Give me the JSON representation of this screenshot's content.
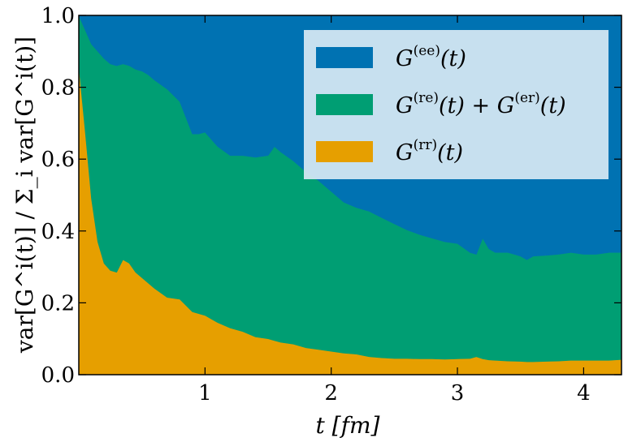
{
  "chart_data": {
    "type": "area",
    "stacked": true,
    "xlabel": "t [fm]",
    "ylabel": "var[G^i(t)] / Σ_i var[G^i(t)]",
    "xlim": [
      0.0,
      4.3
    ],
    "ylim": [
      0.0,
      1.0
    ],
    "x_ticks": [
      1,
      2,
      3,
      4
    ],
    "y_ticks": [
      0.0,
      0.2,
      0.4,
      0.6,
      0.8,
      1.0
    ],
    "x_tick_labels": [
      "1",
      "2",
      "3",
      "4"
    ],
    "y_tick_labels": [
      "0.0",
      "0.2",
      "0.4",
      "0.6",
      "0.8",
      "1.0"
    ],
    "grid": false,
    "legend_position": "top-right",
    "x": [
      0.0,
      0.05,
      0.1,
      0.15,
      0.2,
      0.25,
      0.3,
      0.35,
      0.4,
      0.45,
      0.5,
      0.55,
      0.6,
      0.7,
      0.8,
      0.9,
      0.95,
      1.0,
      1.05,
      1.1,
      1.2,
      1.3,
      1.4,
      1.5,
      1.55,
      1.6,
      1.7,
      1.8,
      1.9,
      2.0,
      2.1,
      2.2,
      2.3,
      2.4,
      2.5,
      2.6,
      2.7,
      2.8,
      2.9,
      3.0,
      3.1,
      3.15,
      3.2,
      3.25,
      3.3,
      3.4,
      3.5,
      3.55,
      3.6,
      3.7,
      3.8,
      3.9,
      4.0,
      4.1,
      4.2,
      4.3
    ],
    "series": [
      {
        "name": "G^(rr)(t)",
        "legend": {
          "base": "G",
          "sup": "(rr)",
          "tail": "(t)"
        },
        "color": "#E69F00",
        "values": [
          0.86,
          0.68,
          0.49,
          0.37,
          0.31,
          0.29,
          0.285,
          0.32,
          0.31,
          0.285,
          0.27,
          0.255,
          0.24,
          0.215,
          0.21,
          0.175,
          0.17,
          0.165,
          0.155,
          0.145,
          0.13,
          0.12,
          0.105,
          0.1,
          0.095,
          0.09,
          0.085,
          0.075,
          0.07,
          0.065,
          0.06,
          0.057,
          0.05,
          0.047,
          0.045,
          0.045,
          0.044,
          0.044,
          0.043,
          0.044,
          0.045,
          0.05,
          0.044,
          0.041,
          0.04,
          0.038,
          0.037,
          0.036,
          0.036,
          0.037,
          0.038,
          0.04,
          0.04,
          0.04,
          0.04,
          0.042
        ]
      },
      {
        "name": "G^(re)(t) + G^(er)(t)",
        "legend": {
          "base": "G",
          "sup": "(re)",
          "tail": "(t) + ",
          "base2": "G",
          "sup2": "(er)",
          "tail2": "(t)"
        },
        "color": "#009E73",
        "values": [
          0.14,
          0.28,
          0.43,
          0.53,
          0.57,
          0.575,
          0.575,
          0.545,
          0.55,
          0.565,
          0.575,
          0.58,
          0.58,
          0.58,
          0.55,
          0.495,
          0.5,
          0.51,
          0.5,
          0.49,
          0.48,
          0.49,
          0.5,
          0.51,
          0.54,
          0.53,
          0.51,
          0.49,
          0.47,
          0.445,
          0.42,
          0.408,
          0.405,
          0.39,
          0.375,
          0.358,
          0.346,
          0.336,
          0.327,
          0.321,
          0.295,
          0.285,
          0.336,
          0.309,
          0.3,
          0.302,
          0.293,
          0.284,
          0.294,
          0.295,
          0.297,
          0.3,
          0.295,
          0.295,
          0.3,
          0.298
        ]
      },
      {
        "name": "G^(ee)(t)",
        "legend": {
          "base": "G",
          "sup": "(ee)",
          "tail": "(t)"
        },
        "color": "#0072B2",
        "values": [
          0.0,
          0.04,
          0.08,
          0.1,
          0.12,
          0.135,
          0.14,
          0.135,
          0.14,
          0.15,
          0.155,
          0.165,
          0.18,
          0.205,
          0.24,
          0.33,
          0.33,
          0.325,
          0.345,
          0.365,
          0.39,
          0.39,
          0.395,
          0.39,
          0.365,
          0.38,
          0.405,
          0.435,
          0.46,
          0.49,
          0.52,
          0.535,
          0.545,
          0.563,
          0.58,
          0.597,
          0.61,
          0.62,
          0.63,
          0.635,
          0.66,
          0.665,
          0.62,
          0.65,
          0.66,
          0.66,
          0.67,
          0.68,
          0.67,
          0.668,
          0.665,
          0.66,
          0.665,
          0.665,
          0.66,
          0.66
        ]
      }
    ]
  }
}
